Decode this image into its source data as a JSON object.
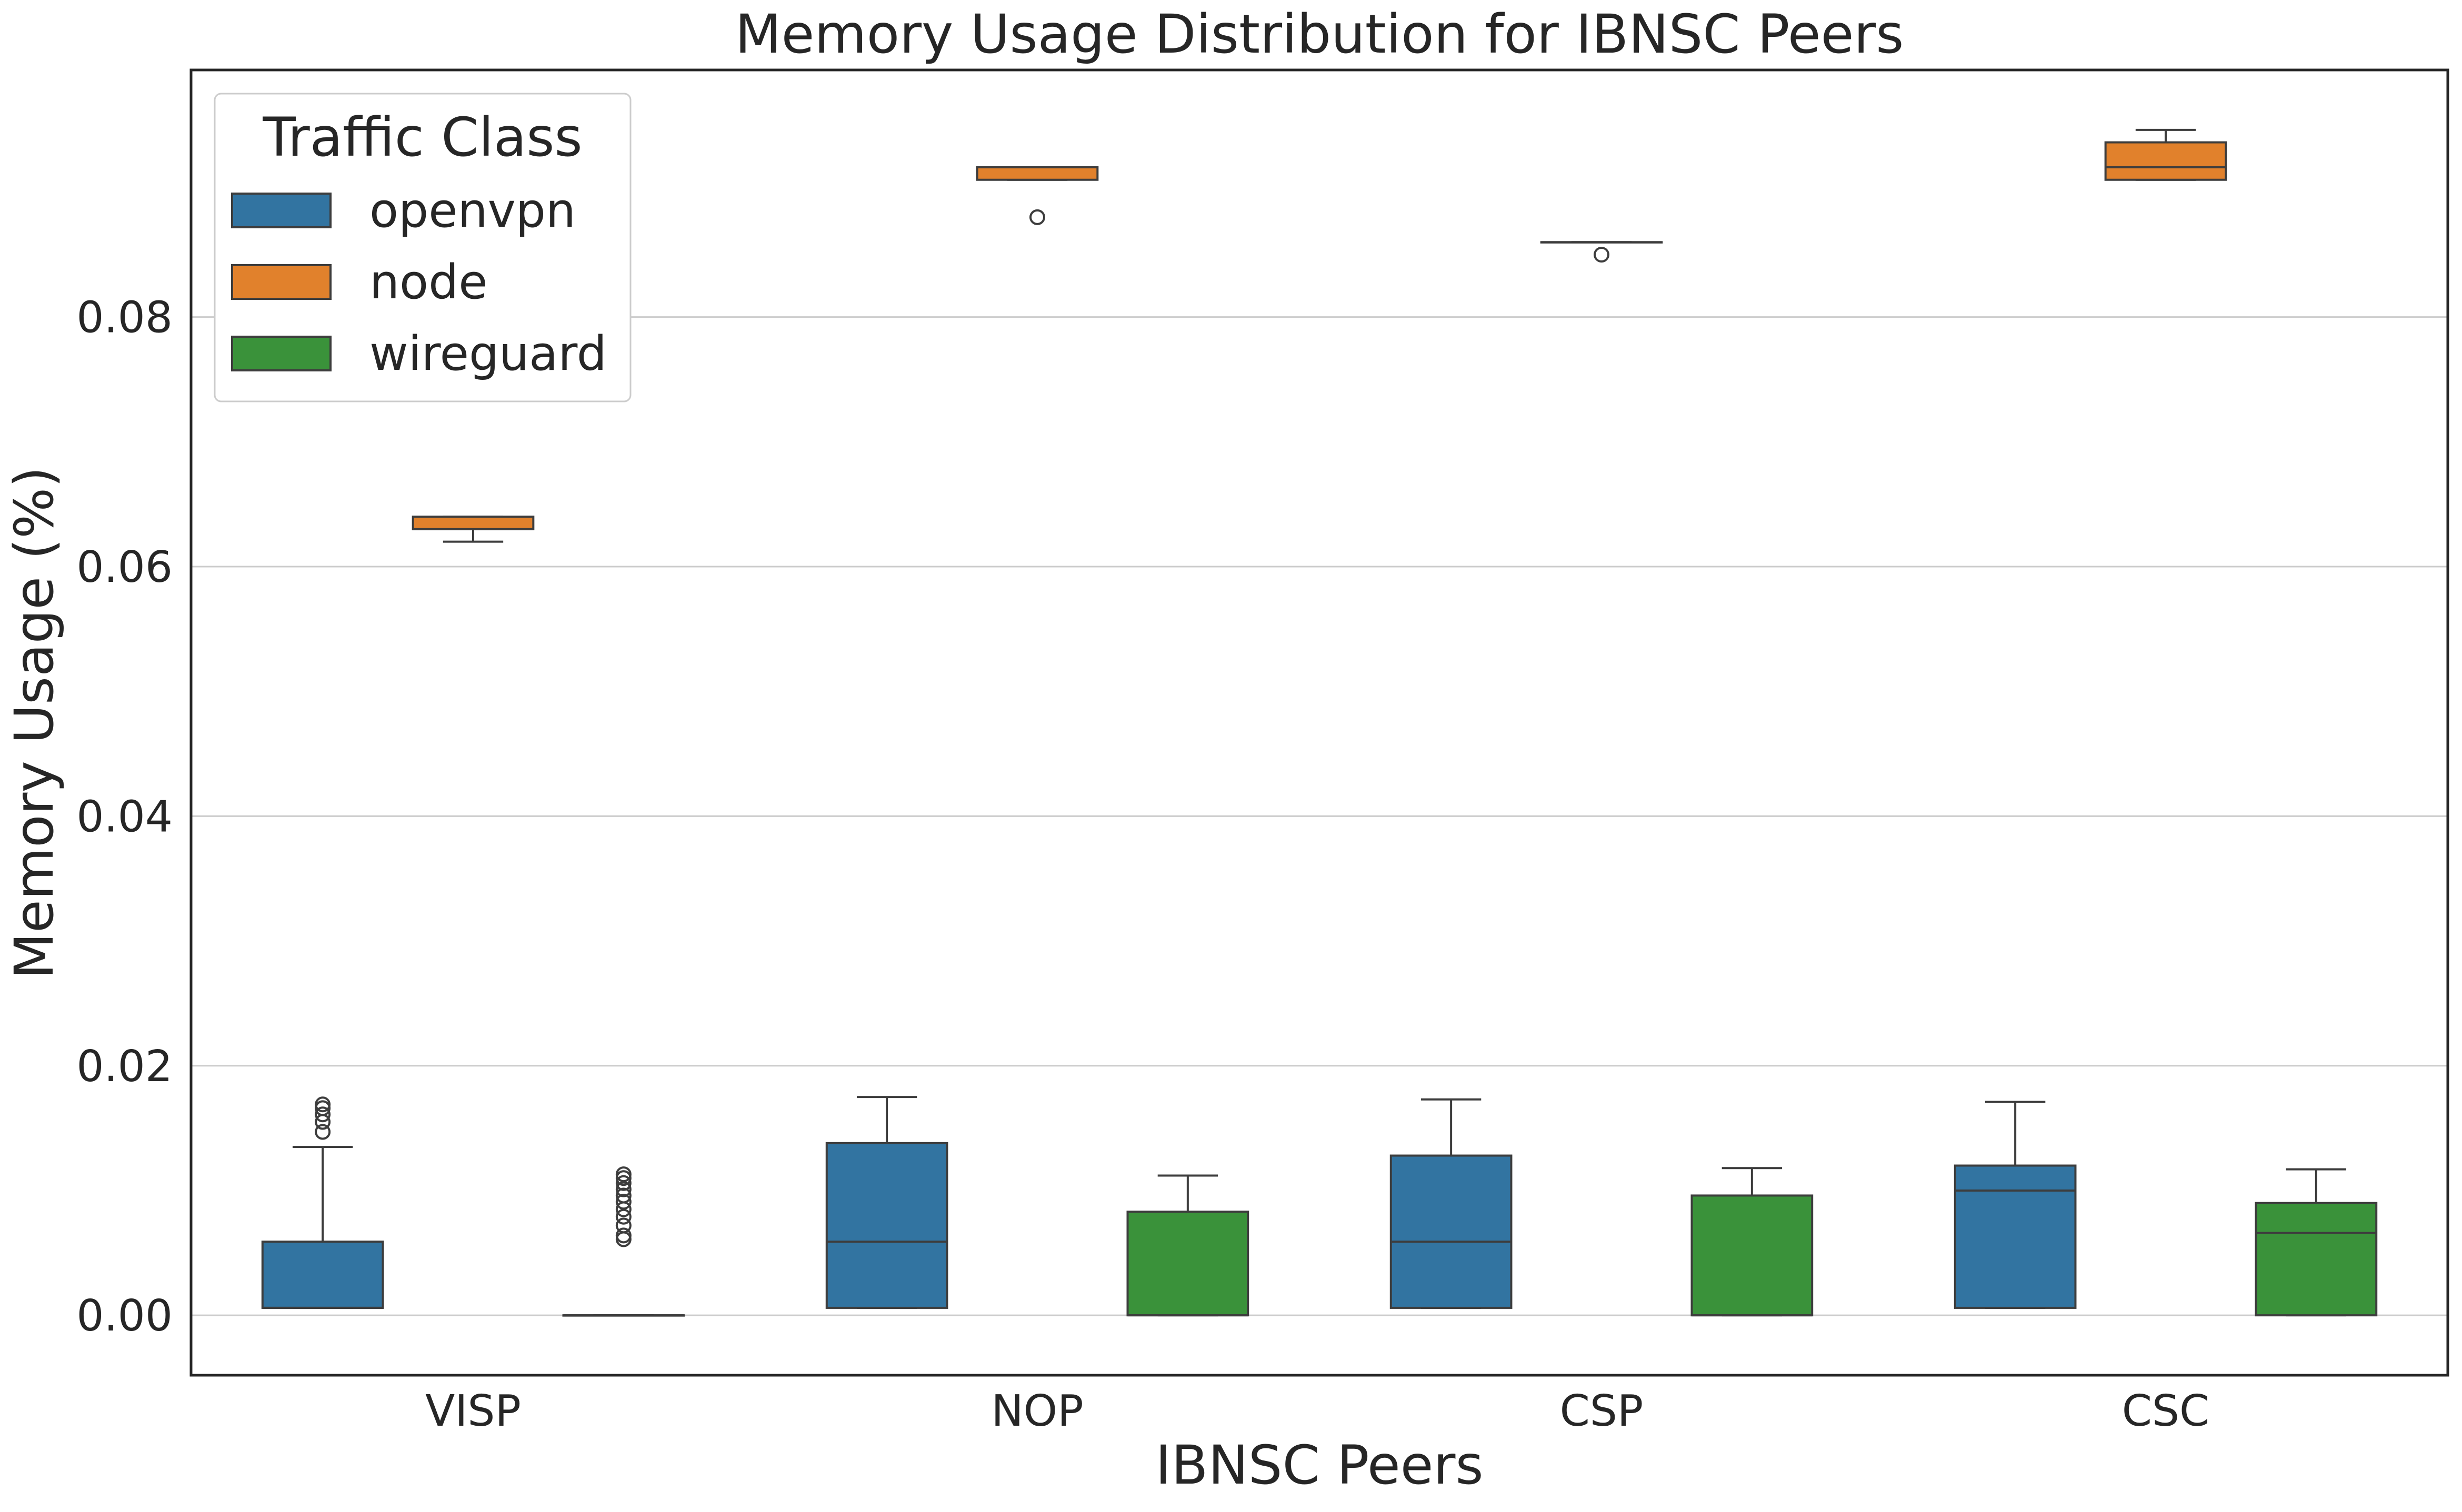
{
  "chart_data": {
    "type": "box",
    "title": "Memory Usage Distribution for IBNSC Peers",
    "xlabel": "IBNSC Peers",
    "ylabel": "Memory Usage (%)",
    "categories": [
      "VISP",
      "NOP",
      "CSP",
      "CSC"
    ],
    "ylim": [
      -0.0048,
      0.0998
    ],
    "yticks": [
      0.0,
      0.02,
      0.04,
      0.06,
      0.08
    ],
    "ytick_labels": [
      "0.00",
      "0.02",
      "0.04",
      "0.06",
      "0.08"
    ],
    "grid": "horizontal",
    "legend": {
      "title": "Traffic Class",
      "placement": "top-left",
      "entries": [
        "openvpn",
        "node",
        "wireguard"
      ]
    },
    "series": [
      {
        "name": "openvpn",
        "color": "#3274a1",
        "boxes": [
          {
            "category": "VISP",
            "whislo": 0.0006,
            "q1": 0.0006,
            "med": 0.0006,
            "q3": 0.0059,
            "whishi": 0.0135,
            "fliers": [
              0.0147,
              0.0155,
              0.0161,
              0.0166,
              0.0169
            ]
          },
          {
            "category": "NOP",
            "whislo": 0.0006,
            "q1": 0.0006,
            "med": 0.0059,
            "q3": 0.0138,
            "whishi": 0.0175,
            "fliers": []
          },
          {
            "category": "CSP",
            "whislo": 0.0006,
            "q1": 0.0006,
            "med": 0.0059,
            "q3": 0.0128,
            "whishi": 0.0173,
            "fliers": []
          },
          {
            "category": "CSC",
            "whislo": 0.0006,
            "q1": 0.0006,
            "med": 0.01,
            "q3": 0.012,
            "whishi": 0.0171,
            "fliers": []
          }
        ]
      },
      {
        "name": "node",
        "color": "#e1812c",
        "boxes": [
          {
            "category": "VISP",
            "whislo": 0.062,
            "q1": 0.063,
            "med": 0.063,
            "q3": 0.064,
            "whishi": 0.064,
            "fliers": []
          },
          {
            "category": "NOP",
            "whislo": 0.091,
            "q1": 0.091,
            "med": 0.092,
            "q3": 0.092,
            "whishi": 0.092,
            "fliers": [
              0.088
            ]
          },
          {
            "category": "CSP",
            "whislo": 0.086,
            "q1": 0.086,
            "med": 0.086,
            "q3": 0.086,
            "whishi": 0.086,
            "fliers": [
              0.085
            ]
          },
          {
            "category": "CSC",
            "whislo": 0.091,
            "q1": 0.091,
            "med": 0.092,
            "q3": 0.094,
            "whishi": 0.095,
            "fliers": []
          }
        ]
      },
      {
        "name": "wireguard",
        "color": "#3a923a",
        "boxes": [
          {
            "category": "VISP",
            "whislo": 0.0,
            "q1": 0.0,
            "med": 0.0,
            "q3": 0.0,
            "whishi": 0.0,
            "fliers": [
              0.0061,
              0.0064,
              0.0072,
              0.0079,
              0.0085,
              0.0091,
              0.0096,
              0.0101,
              0.0106,
              0.011,
              0.0113
            ]
          },
          {
            "category": "NOP",
            "whislo": 0.0,
            "q1": 0.0,
            "med": 0.0,
            "q3": 0.0083,
            "whishi": 0.0112,
            "fliers": []
          },
          {
            "category": "CSP",
            "whislo": 0.0,
            "q1": 0.0,
            "med": 0.0,
            "q3": 0.0096,
            "whishi": 0.0118,
            "fliers": []
          },
          {
            "category": "CSC",
            "whislo": 0.0,
            "q1": 0.0,
            "med": 0.0066,
            "q3": 0.009,
            "whishi": 0.0117,
            "fliers": []
          }
        ]
      }
    ]
  }
}
